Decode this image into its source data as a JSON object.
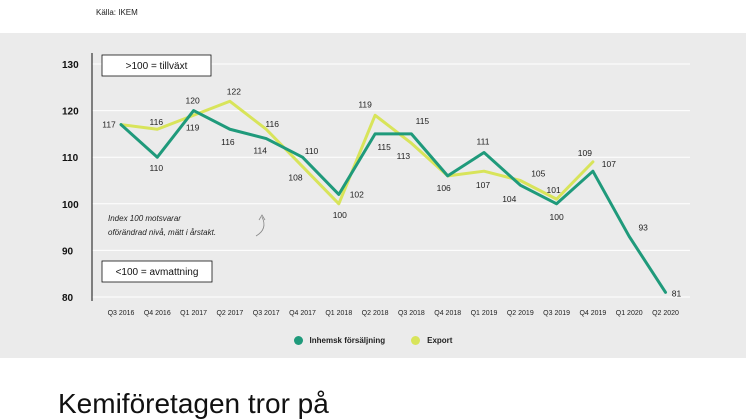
{
  "source": "Källa: IKEM",
  "headline": "Kemiföretagen tror på",
  "colors": {
    "inhemsk": "#1f9a7b",
    "export": "#d8e45a",
    "panel": "#ebebeb"
  },
  "annotations": {
    "growth": ">100 = tillväxt",
    "decline": "<100 = avmattning",
    "note_line1": "Index 100 motsvarar",
    "note_line2": "oförändrad nivå, mätt i årstakt."
  },
  "chart_data": {
    "type": "line",
    "categories": [
      "Q3 2016",
      "Q4 2016",
      "Q1 2017",
      "Q2 2017",
      "Q3 2017",
      "Q4 2017",
      "Q1 2018",
      "Q2 2018",
      "Q3 2018",
      "Q4 2018",
      "Q1 2019",
      "Q2 2019",
      "Q3 2019",
      "Q4 2019",
      "Q1 2020",
      "Q2 2020"
    ],
    "yticks": [
      80,
      90,
      100,
      110,
      120,
      130
    ],
    "ylim": [
      80,
      130
    ],
    "grid": true,
    "legend_position": "bottom",
    "series": [
      {
        "name": "Inhemsk försäljning",
        "key": "inhemsk",
        "values": [
          117,
          110,
          120,
          116,
          114,
          110,
          102,
          115,
          115,
          106,
          111,
          104,
          100,
          107,
          93,
          81
        ]
      },
      {
        "name": "Export",
        "key": "export",
        "values": [
          117,
          116,
          119,
          122,
          116,
          108,
          100,
          119,
          113,
          106,
          107,
          105,
          101,
          109,
          null,
          null
        ]
      }
    ],
    "labels": [
      {
        "text": "117"
      },
      {
        "text": "116"
      },
      {
        "text": "110"
      },
      {
        "text": "120"
      },
      {
        "text": "119"
      },
      {
        "text": "122"
      },
      {
        "text": "116"
      },
      {
        "text": "116"
      },
      {
        "text": "114"
      },
      {
        "text": "110"
      },
      {
        "text": "108"
      },
      {
        "text": "102"
      },
      {
        "text": "100"
      },
      {
        "text": "119"
      },
      {
        "text": "115"
      },
      {
        "text": "115"
      },
      {
        "text": "113"
      },
      {
        "text": "106"
      },
      {
        "text": "111"
      },
      {
        "text": "107"
      },
      {
        "text": "104"
      },
      {
        "text": "105"
      },
      {
        "text": "101"
      },
      {
        "text": "100"
      },
      {
        "text": "109"
      },
      {
        "text": "107"
      },
      {
        "text": "93"
      },
      {
        "text": "81"
      }
    ]
  }
}
